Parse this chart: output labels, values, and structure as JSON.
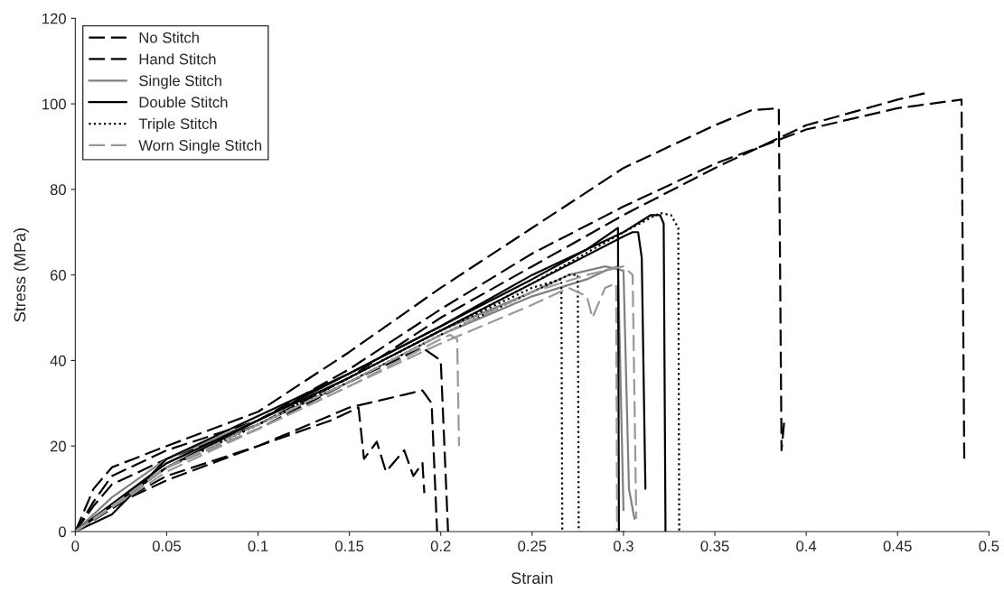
{
  "chart_data": {
    "type": "line",
    "xlabel": "Strain",
    "ylabel": "Stress (MPa)",
    "xlim": [
      0,
      0.5
    ],
    "xticks": [
      0,
      0.05,
      0.1,
      0.15,
      0.2,
      0.25,
      0.3,
      0.35,
      0.4,
      0.45,
      0.5
    ],
    "ylim": [
      0,
      120
    ],
    "yticks": [
      0,
      20,
      40,
      60,
      80,
      100,
      120
    ],
    "grid": false,
    "legend": "top left",
    "marker": "none",
    "series": [
      {
        "name": "No Stitch",
        "color": "#000000",
        "line_style": "dashed",
        "x": [
          0,
          0.01,
          0.02,
          0.05,
          0.1,
          0.15,
          0.2,
          0.25,
          0.3,
          0.35,
          0.37,
          0.385,
          0.3865,
          0.388
        ],
        "values": [
          0,
          10,
          15,
          20,
          28,
          42,
          57,
          71,
          85,
          95,
          98.5,
          99,
          19,
          26
        ]
      },
      {
        "color": "#000000",
        "line_style": "dashed",
        "x": [
          0,
          0.01,
          0.02,
          0.05,
          0.1,
          0.15,
          0.2,
          0.25,
          0.3,
          0.35,
          0.4,
          0.45,
          0.485,
          0.4865
        ],
        "values": [
          0,
          7,
          13,
          19,
          26,
          38,
          52,
          65,
          76,
          86,
          94,
          99,
          101,
          17
        ]
      },
      {
        "color": "#000000",
        "line_style": "dashed",
        "x": [
          0,
          0.01,
          0.02,
          0.05,
          0.1,
          0.15,
          0.2,
          0.25,
          0.3,
          0.35,
          0.4,
          0.45,
          0.465
        ],
        "values": [
          0,
          6,
          11,
          17,
          25,
          36,
          50,
          62,
          74,
          85,
          95,
          101,
          102.5
        ]
      },
      {
        "name": "Hand Stitch",
        "color": "#000000",
        "line_style": "dashed",
        "x": [
          0,
          0.02,
          0.05,
          0.1,
          0.14,
          0.155,
          0.158,
          0.165,
          0.17,
          0.18,
          0.185,
          0.19,
          0.191
        ],
        "values": [
          0,
          6,
          13,
          20,
          26,
          29,
          17,
          21,
          14,
          19,
          13,
          16,
          9
        ]
      },
      {
        "color": "#000000",
        "line_style": "dashed",
        "x": [
          0,
          0.03,
          0.05,
          0.1,
          0.15,
          0.18,
          0.19,
          0.195,
          0.198
        ],
        "values": [
          0,
          8,
          12,
          20,
          29,
          32,
          33,
          30,
          0
        ]
      },
      {
        "color": "#000000",
        "line_style": "dashed",
        "x": [
          0,
          0.05,
          0.1,
          0.15,
          0.19,
          0.2,
          0.204
        ],
        "values": [
          0,
          15,
          24,
          35,
          43,
          40,
          0
        ]
      },
      {
        "name": "Single Stitch",
        "color": "#808080",
        "line_style": "solid",
        "x": [
          0,
          0.02,
          0.05,
          0.1,
          0.15,
          0.2,
          0.25,
          0.27,
          0.29,
          0.3,
          0.303,
          0.306
        ],
        "values": [
          0,
          8,
          17,
          26,
          36,
          47,
          56,
          60,
          62,
          61,
          10,
          3
        ]
      },
      {
        "color": "#808080",
        "line_style": "solid",
        "x": [
          0,
          0.05,
          0.1,
          0.15,
          0.2,
          0.25,
          0.28,
          0.29,
          0.297,
          0.3
        ],
        "values": [
          0,
          16,
          25,
          35,
          46,
          55,
          59,
          61,
          62,
          5
        ]
      },
      {
        "name": "Double Stitch",
        "color": "#000000",
        "line_style": "solid",
        "x": [
          0,
          0.02,
          0.05,
          0.1,
          0.15,
          0.2,
          0.25,
          0.28,
          0.297,
          0.2975,
          0.3
        ],
        "values": [
          0,
          4,
          17,
          27,
          37,
          48,
          59,
          66,
          71,
          0,
          0
        ]
      },
      {
        "color": "#000000",
        "line_style": "solid",
        "x": [
          0,
          0.05,
          0.1,
          0.15,
          0.2,
          0.25,
          0.3,
          0.315,
          0.32,
          0.322,
          0.323
        ],
        "values": [
          0,
          16,
          26,
          37,
          48,
          60,
          70,
          74,
          74,
          72,
          0
        ]
      },
      {
        "color": "#000000",
        "line_style": "solid",
        "x": [
          0,
          0.05,
          0.1,
          0.15,
          0.2,
          0.25,
          0.3,
          0.305,
          0.308,
          0.31,
          0.312
        ],
        "values": [
          0,
          15,
          26,
          36,
          47,
          58,
          69,
          70,
          70,
          64,
          10
        ]
      },
      {
        "name": "Triple Stitch",
        "color": "#000000",
        "line_style": "dotted",
        "x": [
          0,
          0.05,
          0.1,
          0.15,
          0.2,
          0.25,
          0.266,
          0.2665
        ],
        "values": [
          0,
          15,
          25,
          36,
          47,
          57,
          59,
          0
        ]
      },
      {
        "color": "#000000",
        "line_style": "dotted",
        "x": [
          0,
          0.05,
          0.1,
          0.15,
          0.2,
          0.25,
          0.27,
          0.275,
          0.2755
        ],
        "values": [
          0,
          15,
          25,
          35,
          46,
          56,
          60,
          60,
          0
        ]
      },
      {
        "color": "#000000",
        "line_style": "dotted",
        "x": [
          0,
          0.05,
          0.1,
          0.15,
          0.2,
          0.25,
          0.3,
          0.32,
          0.326,
          0.33,
          0.3305
        ],
        "values": [
          0,
          15,
          25,
          36,
          47,
          58,
          70,
          74.5,
          74,
          71,
          0
        ]
      },
      {
        "name": "Worn Single Stitch",
        "color": "#999999",
        "line_style": "dashed",
        "x": [
          0,
          0.05,
          0.1,
          0.15,
          0.2,
          0.205,
          0.209,
          0.21
        ],
        "values": [
          0,
          14,
          24,
          34,
          45,
          46,
          45,
          20
        ]
      },
      {
        "color": "#999999",
        "line_style": "dashed",
        "x": [
          0,
          0.05,
          0.1,
          0.15,
          0.2,
          0.25,
          0.27,
          0.28,
          0.283,
          0.29,
          0.296,
          0.2965,
          0.3
        ],
        "values": [
          0,
          15,
          24,
          34,
          44,
          53,
          57,
          55,
          50,
          57,
          58,
          0,
          0
        ]
      },
      {
        "color": "#999999",
        "line_style": "dashed",
        "x": [
          0,
          0.05,
          0.1,
          0.15,
          0.2,
          0.25,
          0.28,
          0.3,
          0.305,
          0.307
        ],
        "values": [
          0,
          15,
          25,
          35,
          46,
          56,
          60,
          62,
          60,
          3
        ]
      }
    ]
  }
}
